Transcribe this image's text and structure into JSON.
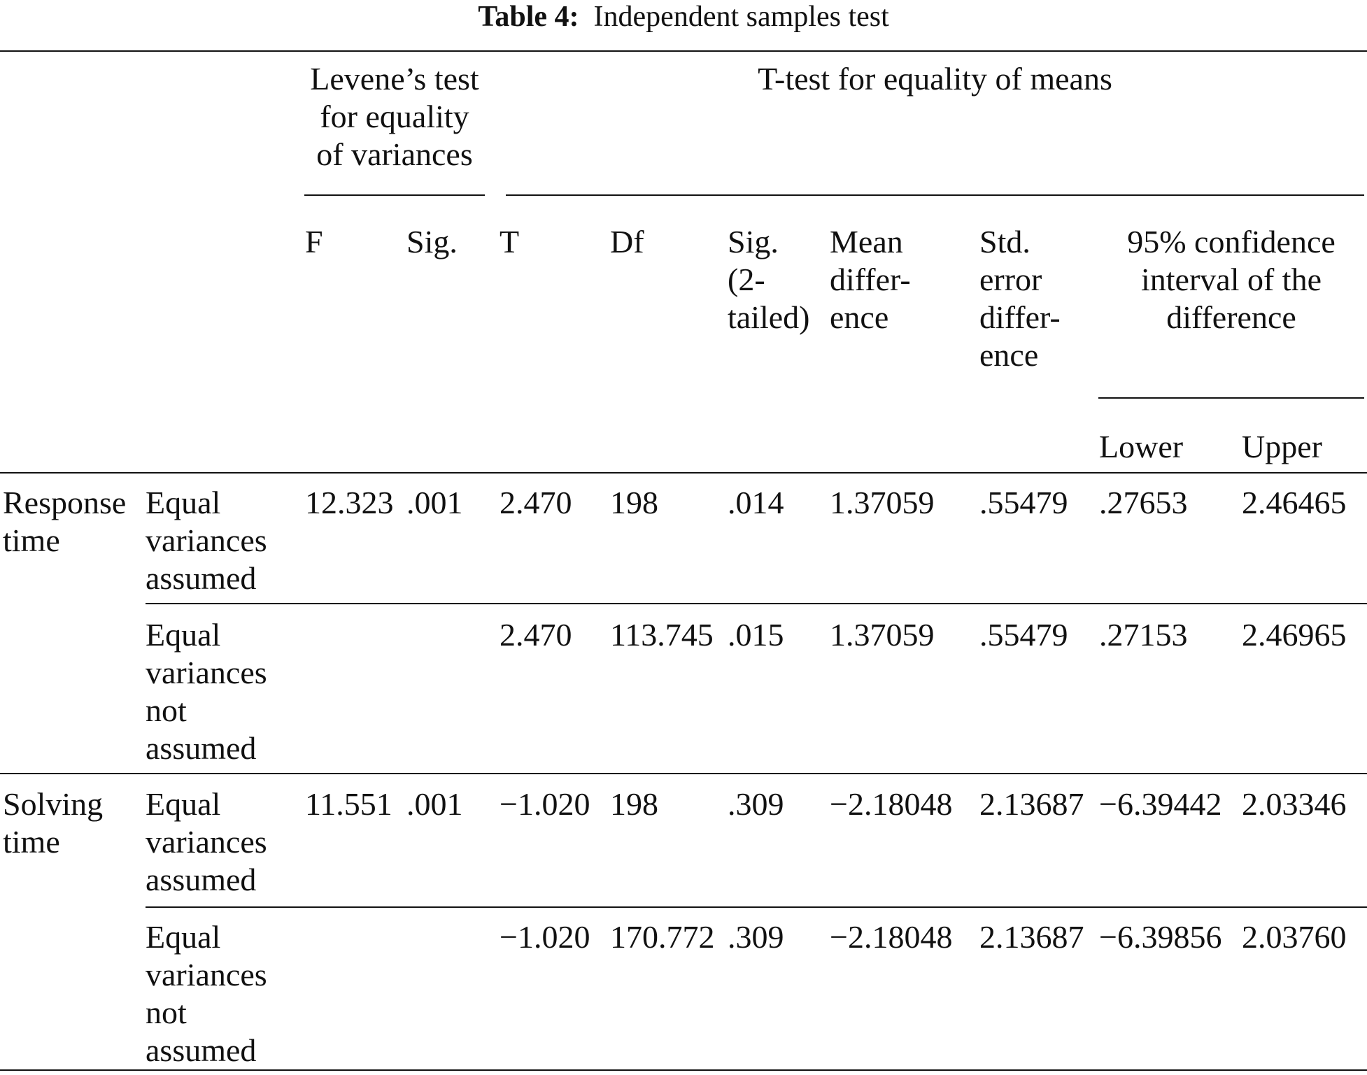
{
  "caption": {
    "label": "Table 4:",
    "text": "Independent samples test"
  },
  "header": {
    "levene_group": "Levene’s test\nfor equality\nof variances",
    "ttest_group": "T-test for equality of means",
    "ci_group": "95% confidence\ninterval of the\ndifference",
    "columns": [
      "F",
      "Sig.",
      "T",
      "Df",
      "Sig.\n(2-\ntailed)",
      "Mean\ndiffer-\nence",
      "Std.\nerror\ndiffer-\nence",
      "Lower",
      "Upper"
    ]
  },
  "groups": [
    {
      "label": "Response\ntime",
      "rows": [
        {
          "label": "Equal\nvariances\nassumed",
          "values": [
            "12.323",
            ".001",
            "2.470",
            "198",
            ".014",
            "1.37059",
            ".55479",
            ".27653",
            "2.46465"
          ]
        },
        {
          "label": "Equal\nvariances\nnot\nassumed",
          "values": [
            "",
            "",
            "2.470",
            "113.745",
            ".015",
            "1.37059",
            ".55479",
            ".27153",
            "2.46965"
          ]
        }
      ]
    },
    {
      "label": "Solving\ntime",
      "rows": [
        {
          "label": "Equal\nvariances\nassumed",
          "values": [
            "11.551",
            ".001",
            "−1.020",
            "198",
            ".309",
            "−2.18048",
            "2.13687",
            "−6.39442",
            "2.03346"
          ]
        },
        {
          "label": "Equal\nvariances\nnot\nassumed",
          "values": [
            "",
            "",
            "−1.020",
            "170.772",
            ".309",
            "−2.18048",
            "2.13687",
            "−6.39856",
            "2.03760"
          ]
        }
      ]
    }
  ]
}
